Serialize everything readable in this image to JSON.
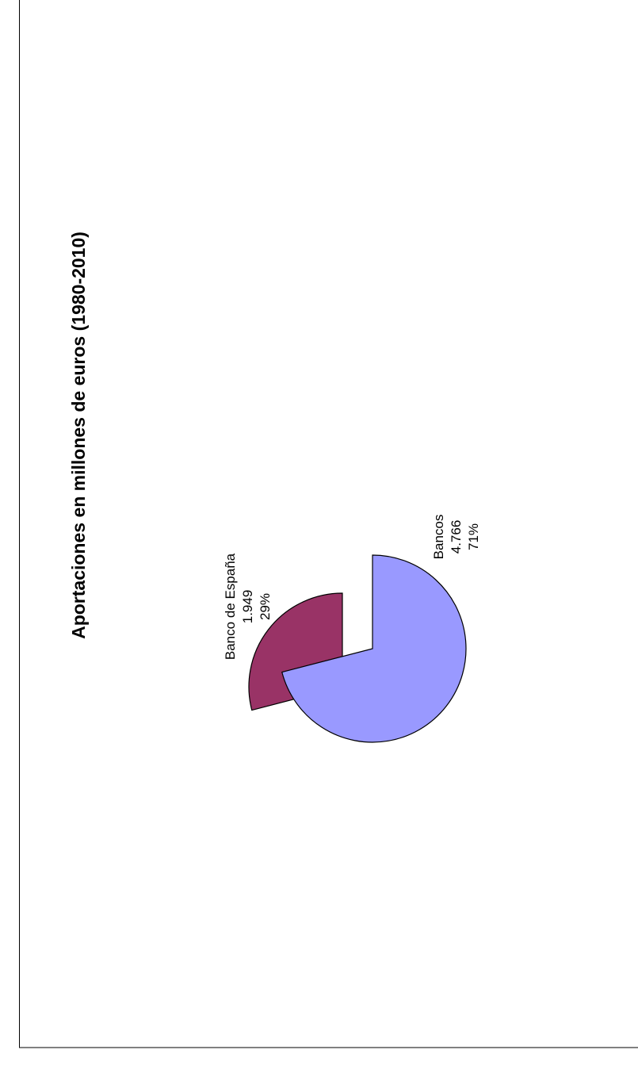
{
  "chart_data": {
    "type": "pie",
    "title": "Aportaciones en millones de euros (1980-2010)",
    "orientation": "rotated 90° counter-clockwise",
    "slices": [
      {
        "name": "Banco de España",
        "value": "1.949",
        "percent": "29%",
        "numeric": 1949,
        "color": "#993366",
        "exploded": true
      },
      {
        "name": "Bancos",
        "value": "4.766",
        "percent": "71%",
        "numeric": 4766,
        "color": "#9999ff",
        "exploded": true
      }
    ]
  }
}
